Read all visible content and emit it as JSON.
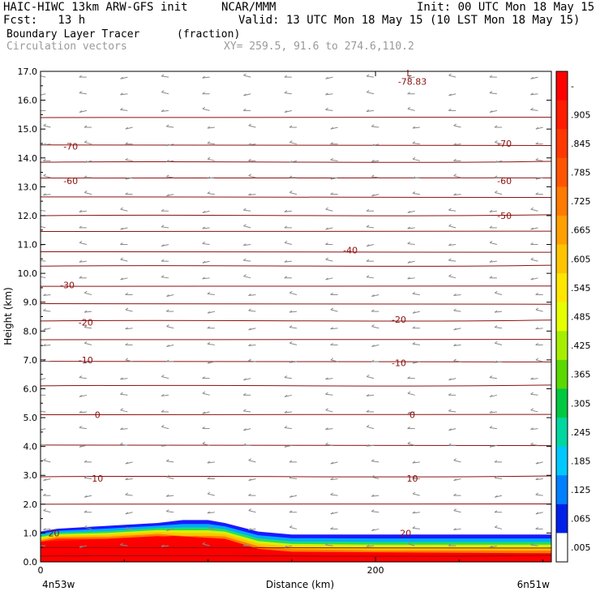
{
  "header": {
    "model": "HAIC-HIWC 13km ARW-GFS init",
    "org": "NCAR/MMM",
    "init": "Init: 00 UTC Mon 18 May 15",
    "fcst": "Fcst:   13 h",
    "valid": "Valid: 13 UTC Mon 18 May 15 (10 LST Mon 18 May 15)",
    "field": "Boundary Layer Tracer",
    "field_units": "(fraction)",
    "vectors": "Circulation vectors",
    "xy": "XY= 259.5, 91.6 to 274.6,110.2"
  },
  "chart_data": {
    "type": "heatmap",
    "title": "Boundary Layer Tracer",
    "ylabel": "Height (km)",
    "xlabel": "Distance (km)",
    "xlim": [
      0,
      305
    ],
    "ylim": [
      0,
      17
    ],
    "y_ticks": [
      "0.0",
      "1.0",
      "2.0",
      "3.0",
      "4.0",
      "5.0",
      "6.0",
      "7.0",
      "8.0",
      "9.0",
      "10.0",
      "11.0",
      "12.0",
      "13.0",
      "14.0",
      "15.0",
      "16.0",
      "17.0"
    ],
    "x_ticks": [
      {
        "value": 0,
        "label": "0"
      },
      {
        "value": 200,
        "label": "200"
      }
    ],
    "x_endpoints": {
      "left": "4n53w",
      "right": "6n51w"
    },
    "colorbar": {
      "labels": [
        "-",
        ".905",
        ".845",
        ".785",
        ".725",
        ".665",
        ".605",
        ".545",
        ".485",
        ".425",
        ".365",
        ".305",
        ".245",
        ".185",
        ".125",
        ".065",
        ".005"
      ],
      "colors": [
        "#ff0000",
        "#ff1c00",
        "#ff3800",
        "#ff5500",
        "#ff7a00",
        "#ff9f00",
        "#ffc400",
        "#ffe600",
        "#e6ff00",
        "#a6ee00",
        "#5ad800",
        "#00c840",
        "#00d6a0",
        "#00c8ff",
        "#0080ff",
        "#0020e8",
        "#ffffff"
      ]
    },
    "contour_color": "#8b1010",
    "contour_labels": [
      {
        "text": "-78.83",
        "x": 222,
        "y": 16.65
      },
      {
        "text": "L",
        "x": 220,
        "y": 16.95
      },
      {
        "text": "-70",
        "x": 18,
        "y": 14.4
      },
      {
        "text": "-70",
        "x": 277,
        "y": 14.5
      },
      {
        "text": "-60",
        "x": 18,
        "y": 13.2
      },
      {
        "text": "-60",
        "x": 277,
        "y": 13.2
      },
      {
        "text": "-50",
        "x": 277,
        "y": 12.0
      },
      {
        "text": "-40",
        "x": 185,
        "y": 10.8
      },
      {
        "text": "-30",
        "x": 16,
        "y": 9.6
      },
      {
        "text": "-20",
        "x": 27,
        "y": 8.3
      },
      {
        "text": "-20",
        "x": 214,
        "y": 8.4
      },
      {
        "text": "-10",
        "x": 27,
        "y": 7.0
      },
      {
        "text": "-10",
        "x": 214,
        "y": 6.9
      },
      {
        "text": "0",
        "x": 34,
        "y": 5.1
      },
      {
        "text": "0",
        "x": 222,
        "y": 5.1
      },
      {
        "text": "10",
        "x": 34,
        "y": 2.9
      },
      {
        "text": "10",
        "x": 222,
        "y": 2.9
      },
      {
        "text": "20",
        "x": 8,
        "y": 1.0
      },
      {
        "text": "20",
        "x": 218,
        "y": 1.0
      }
    ],
    "tracer_top": [
      [
        0,
        1.05
      ],
      [
        10,
        1.15
      ],
      [
        40,
        1.25
      ],
      [
        70,
        1.35
      ],
      [
        85,
        1.45
      ],
      [
        100,
        1.45
      ],
      [
        110,
        1.35
      ],
      [
        130,
        1.05
      ],
      [
        150,
        0.95
      ],
      [
        200,
        0.95
      ],
      [
        260,
        0.95
      ],
      [
        305,
        0.95
      ]
    ],
    "tracer_core_top": [
      [
        0,
        0.7
      ],
      [
        40,
        0.8
      ],
      [
        80,
        0.9
      ],
      [
        110,
        0.8
      ],
      [
        130,
        0.45
      ],
      [
        150,
        0.35
      ],
      [
        305,
        0.3
      ]
    ]
  }
}
